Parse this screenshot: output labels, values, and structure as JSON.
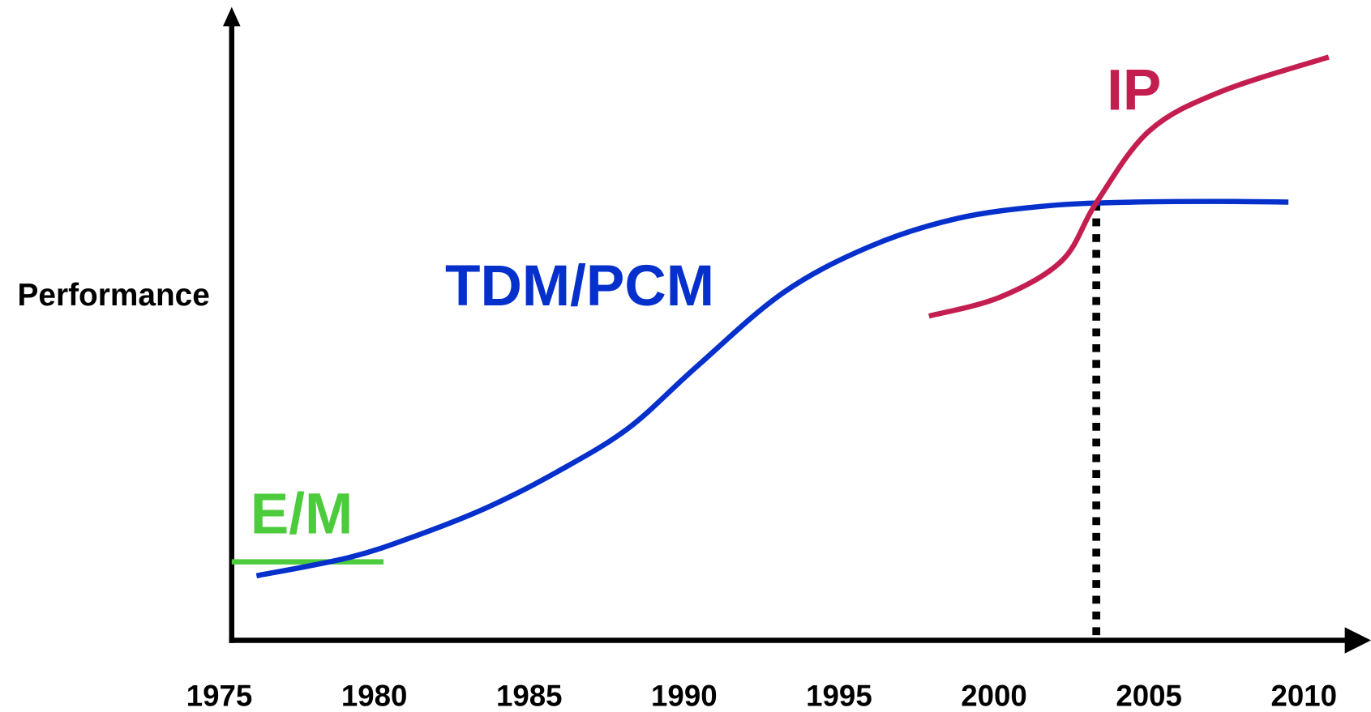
{
  "chart_data": {
    "type": "line",
    "ylabel": "Performance",
    "xlim": [
      1975.4,
      2011.6
    ],
    "xticks": [
      1975,
      1980,
      1985,
      1990,
      1995,
      2000,
      2005,
      2010
    ],
    "ylim": [
      0,
      100
    ],
    "series": [
      {
        "name": "E/M",
        "color": "#4ccc3c",
        "x": [
          1975.4,
          1980.3
        ],
        "values": [
          12.4,
          12.4
        ]
      },
      {
        "name": "TDM/PCM",
        "color": "#0530cc",
        "x": [
          1976.2,
          1979.2,
          1981.4,
          1983.7,
          1985.9,
          1988.2,
          1990.4,
          1993.2,
          1996.0,
          1998.8,
          2001.7,
          2004.5,
          2007.3,
          2009.5
        ],
        "values": [
          10.2,
          13.1,
          16.6,
          21.1,
          26.6,
          33.5,
          43.2,
          54.9,
          62.2,
          66.6,
          68.6,
          69.2,
          69.3,
          69.2
        ]
      },
      {
        "name": "IP",
        "color": "#c41e50",
        "x": [
          1997.9,
          2000.2,
          2002.2,
          2003.3,
          2005.0,
          2007.3,
          2010.8
        ],
        "values": [
          51.2,
          54.2,
          60.0,
          69.1,
          80.4,
          86.6,
          92.1
        ]
      }
    ],
    "crossover": {
      "x": 2003.3,
      "y": 69.1
    }
  }
}
